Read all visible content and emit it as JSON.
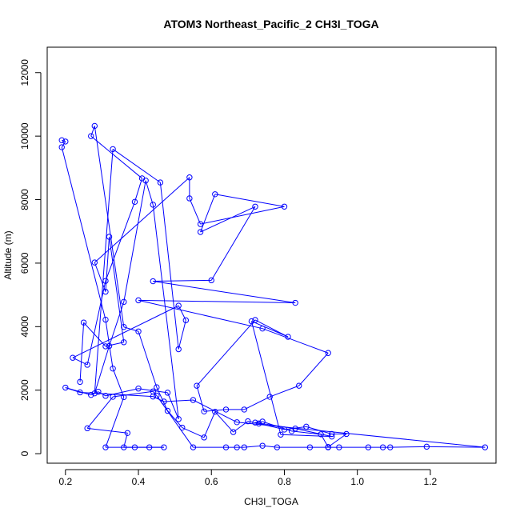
{
  "chart_data": {
    "type": "line",
    "title": "ATOM3 Northeast_Pacific_2 CH3I_TOGA",
    "xlabel": "CH3I_TOGA",
    "ylabel": "Altitude (m)",
    "xlim": [
      0.15,
      1.38
    ],
    "ylim": [
      -300,
      12800
    ],
    "x_ticks": [
      0.2,
      0.4,
      0.6,
      0.8,
      1.0,
      1.2
    ],
    "x_tick_labels": [
      "0.2",
      "0.4",
      "0.6",
      "0.8",
      "1.0",
      "1.2"
    ],
    "y_ticks": [
      0,
      2000,
      4000,
      6000,
      8000,
      10000,
      12000
    ],
    "y_tick_labels": [
      "0",
      "2000",
      "4000",
      "6000",
      "8000",
      "10000",
      "12000"
    ],
    "grid": false,
    "legend": "none",
    "markers": "open-circle",
    "series": [
      {
        "color": "#0000ff",
        "points": [
          [
            0.19,
            9870
          ],
          [
            0.2,
            9830
          ],
          [
            0.19,
            9650
          ],
          [
            0.31,
            4220
          ],
          [
            0.33,
            2680
          ],
          [
            0.36,
            1780
          ],
          [
            0.31,
            200
          ],
          [
            0.39,
            200
          ],
          [
            0.43,
            200
          ],
          [
            0.47,
            200
          ],
          [
            0.36,
            200
          ],
          [
            0.37,
            650
          ],
          [
            0.26,
            800
          ],
          [
            0.33,
            1790
          ],
          [
            0.44,
            1960
          ],
          [
            0.45,
            1830
          ],
          [
            0.55,
            200
          ],
          [
            0.64,
            200
          ],
          [
            0.67,
            200
          ],
          [
            0.69,
            200
          ],
          [
            0.74,
            250
          ],
          [
            0.78,
            200
          ],
          [
            0.87,
            200
          ],
          [
            0.92,
            200
          ],
          [
            0.95,
            200
          ],
          [
            1.03,
            200
          ],
          [
            1.07,
            200
          ],
          [
            1.09,
            200
          ],
          [
            1.19,
            220
          ],
          [
            1.35,
            200
          ],
          [
            0.67,
            990
          ],
          [
            0.55,
            1690
          ],
          [
            0.47,
            1640
          ],
          [
            0.44,
            1800
          ],
          [
            0.24,
            1930
          ],
          [
            0.2,
            2080
          ],
          [
            0.27,
            1850
          ],
          [
            0.29,
            1950
          ],
          [
            0.31,
            1820
          ],
          [
            0.4,
            2050
          ],
          [
            0.48,
            1920
          ],
          [
            0.51,
            1090
          ],
          [
            0.44,
            7840
          ],
          [
            0.42,
            8600
          ],
          [
            0.36,
            4780
          ],
          [
            0.32,
            3390
          ],
          [
            0.28,
            1900
          ],
          [
            0.33,
            9590
          ],
          [
            0.46,
            8540
          ],
          [
            0.51,
            3290
          ],
          [
            0.53,
            4200
          ],
          [
            0.51,
            4660
          ],
          [
            0.22,
            3020
          ],
          [
            0.26,
            2800
          ],
          [
            0.31,
            5440
          ],
          [
            0.39,
            7930
          ],
          [
            0.41,
            8670
          ],
          [
            0.27,
            10000
          ],
          [
            0.28,
            10320
          ],
          [
            0.36,
            3990
          ],
          [
            0.4,
            3850
          ],
          [
            0.45,
            2090
          ],
          [
            0.48,
            1350
          ],
          [
            0.52,
            820
          ],
          [
            0.58,
            510
          ],
          [
            0.61,
            1320
          ],
          [
            0.66,
            680
          ],
          [
            0.7,
            1020
          ],
          [
            0.73,
            950
          ],
          [
            0.8,
            760
          ],
          [
            0.86,
            850
          ],
          [
            0.93,
            620
          ],
          [
            0.97,
            620
          ],
          [
            0.92,
            210
          ],
          [
            0.9,
            610
          ],
          [
            0.82,
            710
          ],
          [
            0.74,
            1010
          ],
          [
            0.72,
            980
          ],
          [
            0.83,
            790
          ],
          [
            0.93,
            540
          ],
          [
            0.79,
            600
          ],
          [
            0.71,
            4170
          ],
          [
            0.81,
            3680
          ],
          [
            0.72,
            4210
          ],
          [
            0.56,
            2140
          ],
          [
            0.58,
            1330
          ],
          [
            0.64,
            1390
          ],
          [
            0.69,
            1390
          ],
          [
            0.76,
            1790
          ],
          [
            0.84,
            2140
          ],
          [
            0.92,
            3170
          ],
          [
            0.74,
            3940
          ],
          [
            0.4,
            4830
          ],
          [
            0.83,
            4750
          ],
          [
            0.44,
            5430
          ],
          [
            0.6,
            5460
          ],
          [
            0.72,
            7780
          ],
          [
            0.57,
            6980
          ],
          [
            0.61,
            8170
          ],
          [
            0.8,
            7780
          ],
          [
            0.57,
            7230
          ],
          [
            0.54,
            8040
          ],
          [
            0.54,
            8700
          ],
          [
            0.28,
            6020
          ],
          [
            0.31,
            5100
          ],
          [
            0.32,
            6830
          ],
          [
            0.36,
            3510
          ],
          [
            0.31,
            3380
          ],
          [
            0.25,
            4130
          ],
          [
            0.24,
            2260
          ]
        ]
      }
    ]
  }
}
